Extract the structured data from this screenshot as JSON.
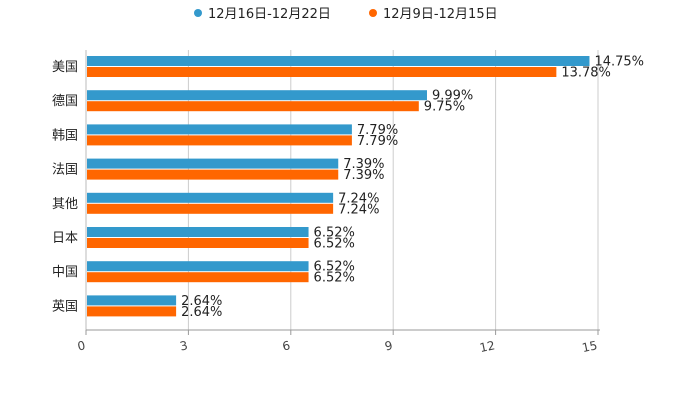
{
  "chart_data": {
    "type": "bar",
    "orientation": "horizontal",
    "title": "",
    "xlabel": "",
    "ylabel": "",
    "categories": [
      "美国",
      "德国",
      "韩国",
      "法国",
      "其他",
      "日本",
      "中国",
      "英国"
    ],
    "series": [
      {
        "name": "12月16日-12月22日",
        "color": "#3399cc",
        "values": [
          14.75,
          9.99,
          7.79,
          7.39,
          7.24,
          6.52,
          6.52,
          2.64
        ],
        "value_labels": [
          "14.75%",
          "9.99%",
          "7.79%",
          "7.39%",
          "7.24%",
          "6.52%",
          "6.52%",
          "2.64%"
        ]
      },
      {
        "name": "12月9日-12月15日",
        "color": "#ff6600",
        "values": [
          13.78,
          9.75,
          7.79,
          7.39,
          7.24,
          6.52,
          6.52,
          2.64
        ],
        "value_labels": [
          "13.78%",
          "9.75%",
          "7.79%",
          "7.39%",
          "7.24%",
          "6.52%",
          "6.52%",
          "2.64%"
        ]
      }
    ],
    "xlim": [
      0,
      15
    ],
    "xticks": [
      "0",
      "3",
      "6",
      "9",
      "12",
      "15"
    ],
    "grid": true,
    "legend": "top-center"
  }
}
